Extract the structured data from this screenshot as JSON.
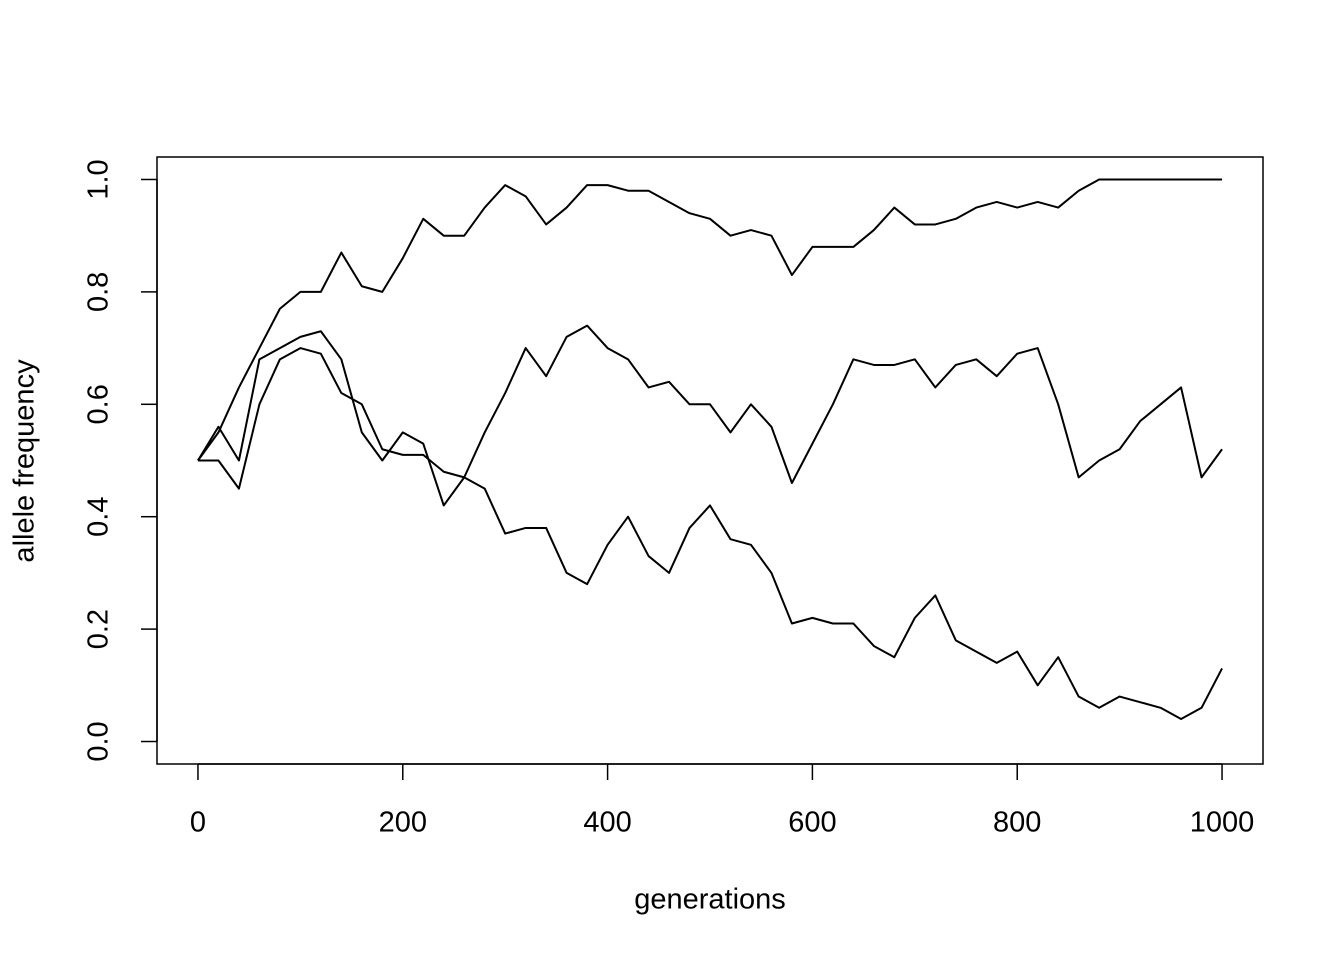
{
  "chart_data": {
    "type": "line",
    "xlabel": "generations",
    "ylabel": "allele frequency",
    "x": [
      0,
      20,
      40,
      60,
      80,
      100,
      120,
      140,
      160,
      180,
      200,
      220,
      240,
      260,
      280,
      300,
      320,
      340,
      360,
      380,
      400,
      420,
      440,
      460,
      480,
      500,
      520,
      540,
      560,
      580,
      600,
      620,
      640,
      660,
      680,
      700,
      720,
      740,
      760,
      780,
      800,
      820,
      840,
      860,
      880,
      900,
      920,
      940,
      960,
      980,
      1000
    ],
    "series": [
      {
        "color": "#000000",
        "values": [
          0.5,
          0.55,
          0.63,
          0.7,
          0.77,
          0.8,
          0.8,
          0.87,
          0.81,
          0.8,
          0.86,
          0.93,
          0.9,
          0.9,
          0.95,
          0.99,
          0.97,
          0.92,
          0.95,
          0.99,
          0.99,
          0.98,
          0.98,
          0.96,
          0.94,
          0.93,
          0.9,
          0.91,
          0.9,
          0.83,
          0.88,
          0.88,
          0.88,
          0.91,
          0.95,
          0.92,
          0.92,
          0.93,
          0.95,
          0.96,
          0.95,
          0.96,
          0.95,
          0.98,
          1,
          1,
          1,
          1,
          1,
          1,
          1
        ]
      },
      {
        "color": "#000000",
        "values": [
          0.5,
          0.5,
          0.45,
          0.6,
          0.68,
          0.7,
          0.69,
          0.62,
          0.6,
          0.52,
          0.51,
          0.51,
          0.48,
          0.47,
          0.55,
          0.62,
          0.7,
          0.65,
          0.72,
          0.74,
          0.7,
          0.68,
          0.63,
          0.64,
          0.6,
          0.6,
          0.55,
          0.6,
          0.56,
          0.46,
          0.53,
          0.6,
          0.68,
          0.67,
          0.67,
          0.68,
          0.63,
          0.67,
          0.68,
          0.65,
          0.69,
          0.7,
          0.6,
          0.47,
          0.5,
          0.52,
          0.57,
          0.6,
          0.63,
          0.47,
          0.52
        ]
      },
      {
        "color": "#000000",
        "values": [
          0.5,
          0.56,
          0.5,
          0.68,
          0.7,
          0.72,
          0.73,
          0.68,
          0.55,
          0.5,
          0.55,
          0.53,
          0.42,
          0.47,
          0.45,
          0.37,
          0.38,
          0.38,
          0.3,
          0.28,
          0.35,
          0.4,
          0.33,
          0.3,
          0.38,
          0.42,
          0.36,
          0.35,
          0.3,
          0.21,
          0.22,
          0.21,
          0.21,
          0.17,
          0.15,
          0.22,
          0.26,
          0.18,
          0.16,
          0.14,
          0.16,
          0.1,
          0.15,
          0.08,
          0.06,
          0.08,
          0.07,
          0.06,
          0.04,
          0.06,
          0.13
        ]
      }
    ],
    "xlim": [
      -40,
      1040
    ],
    "ylim": [
      -0.04,
      1.04
    ],
    "xticks": [
      0,
      200,
      400,
      600,
      800,
      1000
    ],
    "yticks": [
      {
        "value": 0,
        "label": "0.0"
      },
      0.2,
      0.4,
      0.6,
      0.8,
      {
        "value": 1,
        "label": "1.0"
      }
    ],
    "grid": false
  }
}
